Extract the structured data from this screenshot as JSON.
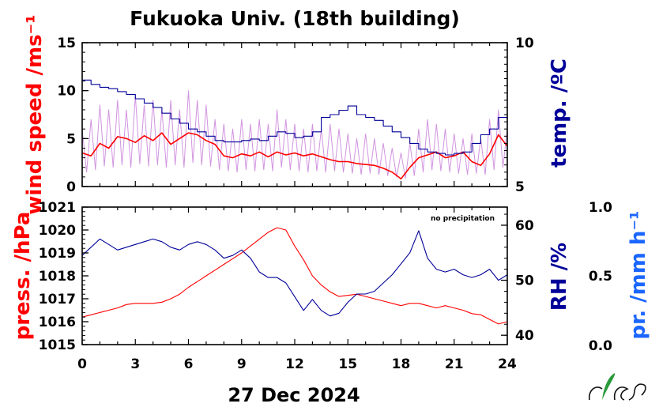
{
  "title": "Fukuoka Univ. (18th building)",
  "date_label": "27 Dec 2024",
  "annotation": "no precipitation",
  "colors": {
    "wind": "#ff0000",
    "wind_gust": "#cc88dd",
    "temp": "#000099",
    "pressure": "#ff0000",
    "rh": "#000099",
    "precip": "#1a66ff",
    "axis": "#000000"
  },
  "logo": {
    "icon": "nies-leaf-logo",
    "text": "NIES"
  },
  "chart_data": [
    {
      "type": "line",
      "panel": "top",
      "x_ticks": [
        "0",
        "3",
        "6",
        "9",
        "12",
        "15",
        "18",
        "21",
        "24"
      ],
      "xlim": [
        0,
        24
      ],
      "ylabel_left": "wind speed /ms⁻¹",
      "ylim_left": [
        0,
        15
      ],
      "yticks_left": [
        "0",
        "5",
        "10",
        "15"
      ],
      "ylabel_right": "temp. /ºC",
      "ylim_right": [
        5,
        10
      ],
      "yticks_right": [
        "5",
        "10"
      ],
      "series": [
        {
          "axis": "left",
          "style": "gust",
          "x": [
            0,
            0.5,
            1,
            1.5,
            2,
            2.5,
            3,
            3.5,
            4,
            4.5,
            5,
            5.5,
            6,
            6.5,
            7,
            7.5,
            8,
            8.5,
            9,
            9.5,
            10,
            10.5,
            11,
            11.5,
            12,
            12.5,
            13,
            13.5,
            14,
            14.5,
            15,
            15.5,
            16,
            16.5,
            17,
            17.5,
            18,
            18.5,
            19,
            19.5,
            20,
            20.5,
            21,
            21.5,
            22,
            22.5,
            23,
            23.5,
            24
          ],
          "y": [
            6,
            7,
            8.5,
            8,
            9,
            8,
            9.5,
            8.5,
            9,
            8,
            9,
            8,
            10,
            9,
            8.5,
            7,
            6.5,
            6,
            7,
            6.5,
            7,
            6.5,
            8,
            7,
            6.5,
            6,
            6.5,
            6,
            6.5,
            6,
            5.5,
            5,
            5.5,
            5,
            4.5,
            4,
            3.5,
            4.5,
            6,
            7,
            6.5,
            6,
            5.5,
            5,
            5.5,
            5,
            7,
            8,
            6
          ]
        },
        {
          "axis": "left",
          "style": "wind",
          "x": [
            0,
            0.5,
            1,
            1.5,
            2,
            2.5,
            3,
            3.5,
            4,
            4.5,
            5,
            5.5,
            6,
            6.5,
            7,
            7.5,
            8,
            8.5,
            9,
            9.5,
            10,
            10.5,
            11,
            11.5,
            12,
            12.5,
            13,
            13.5,
            14,
            14.5,
            15,
            15.5,
            16,
            16.5,
            17,
            17.5,
            18,
            18.5,
            19,
            19.5,
            20,
            20.5,
            21,
            21.5,
            22,
            22.5,
            23,
            23.5,
            24
          ],
          "y": [
            3.5,
            3.2,
            4.5,
            4,
            5.2,
            5,
            4.6,
            5.3,
            4.8,
            5.6,
            4.4,
            5,
            5.6,
            5.4,
            4.8,
            4.4,
            3.2,
            3,
            3.4,
            3.2,
            3.6,
            3.1,
            3.6,
            3.3,
            3.5,
            3.2,
            3.4,
            3.1,
            2.8,
            2.6,
            2.6,
            2.4,
            2.3,
            2.2,
            1.9,
            1.5,
            0.8,
            2,
            3,
            3.3,
            3.6,
            3,
            3.2,
            3.6,
            2.6,
            2.2,
            3.4,
            5.4,
            4.2
          ]
        },
        {
          "axis": "right",
          "style": "temp",
          "x": [
            0,
            0.5,
            1,
            1.5,
            2,
            2.5,
            3,
            3.5,
            4,
            4.5,
            5,
            5.5,
            6,
            6.5,
            7,
            7.5,
            8,
            8.5,
            9,
            9.5,
            10,
            10.5,
            11,
            11.5,
            12,
            12.5,
            13,
            13.5,
            14,
            14.5,
            15,
            15.5,
            16,
            16.5,
            17,
            17.5,
            18,
            18.5,
            19,
            19.5,
            20,
            20.5,
            21,
            21.5,
            22,
            22.5,
            23,
            23.5,
            24
          ],
          "y": [
            8.7,
            8.55,
            8.45,
            8.4,
            8.3,
            8.2,
            8.05,
            7.9,
            7.75,
            7.55,
            7.35,
            7.2,
            7.0,
            6.9,
            6.75,
            6.6,
            6.55,
            6.55,
            6.6,
            6.65,
            6.6,
            6.75,
            6.9,
            6.85,
            6.7,
            6.75,
            6.9,
            7.4,
            7.5,
            7.65,
            7.8,
            7.5,
            7.4,
            7.3,
            7.1,
            6.9,
            6.7,
            6.5,
            6.3,
            6.2,
            6.15,
            6.1,
            6.15,
            6.2,
            6.5,
            6.8,
            7.0,
            7.4,
            7.45
          ]
        }
      ]
    },
    {
      "type": "line",
      "panel": "bottom",
      "x_ticks": [
        "0",
        "3",
        "6",
        "9",
        "12",
        "15",
        "18",
        "21",
        "24"
      ],
      "xlim": [
        0,
        24
      ],
      "xlabel": "",
      "ylabel_left": "press. /hPa",
      "ylim_left": [
        1015,
        1021
      ],
      "yticks_left": [
        "1015",
        "1016",
        "1017",
        "1018",
        "1019",
        "1020",
        "1021"
      ],
      "ylabel_right": "RH /%",
      "ylim_right": [
        38.3,
        63.3
      ],
      "yticks_right": [
        "40",
        "50",
        "60"
      ],
      "ylabel_far_right": "pr. /mm h⁻¹",
      "ylim_far_right": [
        0,
        1
      ],
      "yticks_far_right": [
        "0.0",
        "0.5",
        "1.0"
      ],
      "series": [
        {
          "axis": "left",
          "style": "pressure",
          "x": [
            0,
            0.5,
            1,
            1.5,
            2,
            2.5,
            3,
            3.5,
            4,
            4.5,
            5,
            5.5,
            6,
            6.5,
            7,
            7.5,
            8,
            8.5,
            9,
            9.5,
            10,
            10.5,
            11,
            11.5,
            12,
            12.5,
            13,
            13.5,
            14,
            14.5,
            15,
            15.5,
            16,
            16.5,
            17,
            17.5,
            18,
            18.5,
            19,
            19.5,
            20,
            20.5,
            21,
            21.5,
            22,
            22.5,
            23,
            23.5,
            24
          ],
          "y": [
            1016.2,
            1016.3,
            1016.4,
            1016.5,
            1016.6,
            1016.75,
            1016.8,
            1016.8,
            1016.8,
            1016.85,
            1017.0,
            1017.2,
            1017.5,
            1017.75,
            1018.0,
            1018.25,
            1018.5,
            1018.75,
            1019.0,
            1019.3,
            1019.6,
            1019.9,
            1020.1,
            1020.0,
            1019.3,
            1018.7,
            1018.0,
            1017.6,
            1017.3,
            1017.1,
            1017.15,
            1017.2,
            1017.1,
            1017.0,
            1016.9,
            1016.8,
            1016.7,
            1016.8,
            1016.8,
            1016.7,
            1016.6,
            1016.7,
            1016.6,
            1016.5,
            1016.35,
            1016.3,
            1016.1,
            1015.9,
            1016.0
          ]
        },
        {
          "axis": "right",
          "style": "rh",
          "x": [
            0,
            0.5,
            1,
            1.5,
            2,
            2.5,
            3,
            3.5,
            4,
            4.5,
            5,
            5.5,
            6,
            6.5,
            7,
            7.5,
            8,
            8.5,
            9,
            9.5,
            10,
            10.5,
            11,
            11.5,
            12,
            12.5,
            13,
            13.5,
            14,
            14.5,
            15,
            15.5,
            16,
            16.5,
            17,
            17.5,
            18,
            18.5,
            19,
            19.5,
            20,
            20.5,
            21,
            21.5,
            22,
            22.5,
            23,
            23.5,
            24
          ],
          "y": [
            54.5,
            56,
            57.5,
            56.5,
            55.5,
            56,
            56.5,
            57,
            57.5,
            57,
            56,
            55.5,
            56.5,
            57,
            56.5,
            55.5,
            54,
            54.5,
            55.5,
            54,
            51.5,
            50.5,
            50.5,
            49.5,
            47,
            44.5,
            46.5,
            44.5,
            43.5,
            44,
            46,
            47.5,
            47.5,
            48,
            49.5,
            51,
            53,
            55,
            59,
            54,
            52,
            51.5,
            52,
            51,
            50.5,
            51,
            52,
            50,
            51
          ]
        }
      ]
    }
  ]
}
